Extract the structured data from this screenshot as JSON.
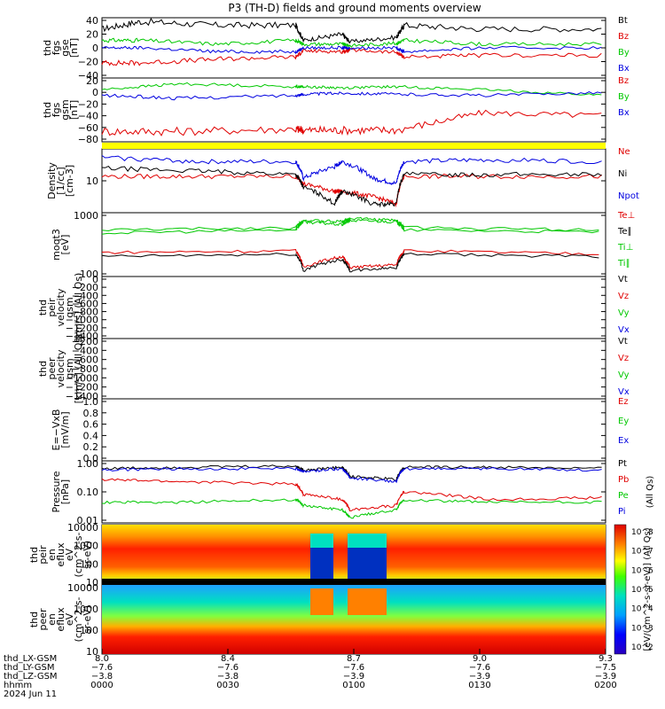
{
  "title": "P3 (TH-D) fields and ground moments overview",
  "colors": {
    "black": "#000000",
    "red": "#e00000",
    "green": "#00c800",
    "blue": "#0000e0",
    "yellow": "#ffff00"
  },
  "chart_data": [
    {
      "id": "fgs_gse",
      "type": "line",
      "ylabel": [
        "thd",
        "fgs",
        "gse",
        "[nT]"
      ],
      "yticks": [
        "40",
        "20",
        "0",
        "−20",
        "−40"
      ],
      "ylim": [
        -40,
        40
      ],
      "series": [
        {
          "name": "Bt",
          "color": "black"
        },
        {
          "name": "Bz",
          "color": "red"
        },
        {
          "name": "By",
          "color": "green"
        },
        {
          "name": "Bx",
          "color": "blue"
        }
      ],
      "segments": [
        {
          "x": [
            8.0,
            8.1,
            8.3,
            8.5,
            8.52,
            8.62,
            8.64,
            8.76,
            8.78,
            8.98,
            9.3
          ],
          "values": {
            "Bt": [
              25,
              35,
              30,
              30,
              10,
              18,
              8,
              14,
              30,
              25,
              25
            ],
            "Bz": [
              -20,
              -20,
              -15,
              -12,
              -4,
              -5,
              -3,
              -6,
              -12,
              -10,
              -10
            ],
            "By": [
              10,
              10,
              5,
              10,
              5,
              5,
              3,
              6,
              10,
              5,
              5
            ],
            "Bx": [
              0,
              0,
              -5,
              -5,
              0,
              0,
              0,
              0,
              -5,
              0,
              0
            ]
          }
        }
      ]
    },
    {
      "id": "fgs_gsm",
      "type": "line",
      "ylabel": [
        "thd",
        "fgs",
        "gsm",
        "[nT]"
      ],
      "yticks": [
        "20",
        "0",
        "−20",
        "−40",
        "−60",
        "−80"
      ],
      "ylim": [
        -90,
        20
      ],
      "series": [
        {
          "name": "Bz",
          "color": "red"
        },
        {
          "name": "By",
          "color": "green"
        },
        {
          "name": "Bx",
          "color": "blue"
        }
      ],
      "segments": [
        {
          "x": [
            8.0,
            8.2,
            8.5,
            8.52,
            8.62,
            8.76,
            8.98,
            9.3
          ],
          "values": {
            "Bz": [
              -72,
              -72,
              -68,
              -70,
              -70,
              -70,
              -40,
              -45
            ],
            "By": [
              0,
              10,
              5,
              5,
              3,
              5,
              0,
              -10
            ],
            "Bx": [
              -10,
              -15,
              -10,
              -8,
              -6,
              -8,
              -10,
              -5
            ]
          }
        }
      ]
    },
    {
      "id": "density",
      "type": "line",
      "ylabel": [
        "Density",
        "[1/cc]",
        "[cm-3]"
      ],
      "yticks": [
        "10"
      ],
      "ylog": true,
      "series": [
        {
          "name": "Ne",
          "color": "red"
        },
        {
          "name": "Ni",
          "color": "black"
        },
        {
          "name": "Npot",
          "color": "blue"
        }
      ],
      "values_note": "",
      "segments": [
        {
          "x": [
            8.0,
            8.25,
            8.5,
            8.52,
            8.6,
            8.62,
            8.7,
            8.76,
            8.78,
            9.0,
            9.3
          ],
          "values": {
            "Ne": [
              9,
              9,
              9,
              6,
              4,
              4,
              3,
              2,
              9,
              9,
              9
            ],
            "Ni": [
              14,
              12,
              10,
              5,
              2,
              4,
              2,
              2,
              10,
              10,
              10
            ],
            "Npot": [
              25,
              20,
              20,
              8,
              15,
              20,
              8,
              6,
              20,
              22,
              20
            ]
          }
        }
      ]
    },
    {
      "id": "temperature",
      "type": "line",
      "ylabel": [
        "moqt3",
        "[eV]"
      ],
      "yticks": [
        "1000",
        "100"
      ],
      "ylog": true,
      "series": [
        {
          "name": "Te⊥",
          "color": "red"
        },
        {
          "name": "Te∥",
          "color": "black"
        },
        {
          "name": "Ti⊥",
          "color": "green"
        },
        {
          "name": "Ti∥",
          "color": "green"
        }
      ],
      "segments": [
        {
          "x": [
            8.0,
            8.5,
            8.52,
            8.62,
            8.64,
            8.76,
            8.78,
            9.3
          ],
          "values": {
            "Ti∥": [
              450,
              550,
              1000,
              900,
              1200,
              1000,
              550,
              450
            ],
            "Ti⊥": [
              350,
              450,
              900,
              700,
              1000,
              900,
              450,
              380
            ],
            "Te⊥": [
              70,
              80,
              20,
              50,
              20,
              25,
              80,
              60
            ],
            "Te∥": [
              50,
              60,
              15,
              40,
              15,
              20,
              60,
              50
            ]
          }
        }
      ]
    },
    {
      "id": "peir_velocity",
      "type": "line",
      "ylabel": [
        "thd",
        "peir",
        "velocity",
        "gsm",
        "[km/s] (All Qs)"
      ],
      "yticks": [
        "0",
        "−200",
        "−400",
        "−600",
        "−800",
        "−1000",
        "−1200",
        "−1400"
      ],
      "ylim": [
        -1400,
        0
      ],
      "series": [
        {
          "name": "Vt",
          "color": "black"
        },
        {
          "name": "Vz",
          "color": "red"
        },
        {
          "name": "Vy",
          "color": "green"
        },
        {
          "name": "Vx",
          "color": "blue"
        }
      ]
    },
    {
      "id": "peer_velocity",
      "type": "line",
      "ylabel": [
        "thd",
        "peer",
        "velocity",
        "gsm",
        "[km/s] (All Qs)"
      ],
      "yticks": [
        "−200",
        "−400",
        "−600",
        "−800",
        "−1000",
        "−1200",
        "−1400"
      ],
      "ylim": [
        -1400,
        0
      ],
      "series": [
        {
          "name": "Vt",
          "color": "black"
        },
        {
          "name": "Vz",
          "color": "red"
        },
        {
          "name": "Vy",
          "color": "green"
        },
        {
          "name": "Vx",
          "color": "blue"
        }
      ]
    },
    {
      "id": "efield",
      "type": "line",
      "ylabel": [
        "E=−VxB",
        "[mV/m]"
      ],
      "yticks": [
        "1.0",
        "0.8",
        "0.6",
        "0.4",
        "0.2",
        "0.0"
      ],
      "ylim": [
        0,
        1
      ],
      "series": [
        {
          "name": "Ez",
          "color": "red"
        },
        {
          "name": "Ey",
          "color": "green"
        },
        {
          "name": "Ex",
          "color": "blue"
        }
      ]
    },
    {
      "id": "pressure",
      "type": "line",
      "ylabel": [
        "Pressure",
        "[nPa]"
      ],
      "yticks": [
        "1.00",
        "0.10",
        "0.01"
      ],
      "ylog": true,
      "series": [
        {
          "name": "Pt",
          "color": "black"
        },
        {
          "name": "Pb",
          "color": "red"
        },
        {
          "name": "Pe",
          "color": "green"
        },
        {
          "name": "Pi",
          "color": "blue"
        }
      ],
      "legend_note": "(All Qs)",
      "segments": [
        {
          "x": [
            8.0,
            8.2,
            8.5,
            8.52,
            8.62,
            8.64,
            8.76,
            8.78,
            9.0,
            9.3
          ],
          "values": {
            "Pt": [
              0.8,
              0.9,
              1.0,
              0.7,
              0.9,
              0.4,
              0.3,
              0.9,
              0.9,
              0.8
            ],
            "Pi": [
              0.7,
              0.8,
              0.8,
              0.6,
              0.8,
              0.35,
              0.25,
              0.8,
              0.8,
              0.7
            ],
            "Pb": [
              0.3,
              0.25,
              0.2,
              0.08,
              0.05,
              0.02,
              0.03,
              0.1,
              0.05,
              0.06
            ],
            "Pe": [
              0.04,
              0.04,
              0.05,
              0.03,
              0.02,
              0.01,
              0.02,
              0.05,
              0.04,
              0.04
            ]
          }
        }
      ]
    },
    {
      "id": "peir_spectrogram",
      "type": "heatmap",
      "ylabel": [
        "thd",
        "peir",
        "en",
        "eflux",
        "eV",
        "(cm^2-s-",
        "sr-eV)"
      ],
      "yticks": [
        "10000",
        "1000",
        "100",
        "10"
      ]
    },
    {
      "id": "peer_spectrogram",
      "type": "heatmap",
      "ylabel": [
        "thd",
        "peer",
        "en",
        "eflux",
        "eV",
        "(cm^2-s-",
        "sr-eV)"
      ],
      "yticks": [
        "10000",
        "1000",
        "100",
        "10"
      ]
    }
  ],
  "colorbar": {
    "ticks": [
      "10^8",
      "10^7",
      "10^6",
      "10^5",
      "10^4",
      "10^3",
      "10^2"
    ],
    "label": "[eV/(cm^2-s-sr-eV)] (All Qs)"
  },
  "x_axis": {
    "row_labels": [
      "thd_LX-GSM",
      "thd_LY-GSM",
      "thd_LZ-GSM",
      "hhmm",
      "2024 Jun 11"
    ],
    "ticks": [
      {
        "lx": "8.0",
        "ly": "−7.6",
        "lz": "−3.8",
        "hhmm": "0000"
      },
      {
        "lx": "8.4",
        "ly": "−7.6",
        "lz": "−3.8",
        "hhmm": "0030"
      },
      {
        "lx": "8.7",
        "ly": "−7.6",
        "lz": "−3.9",
        "hhmm": "0100"
      },
      {
        "lx": "9.0",
        "ly": "−7.6",
        "lz": "−3.9",
        "hhmm": "0130"
      },
      {
        "lx": "9.3",
        "ly": "−7.5",
        "lz": "−3.9",
        "hhmm": "0200"
      }
    ]
  }
}
